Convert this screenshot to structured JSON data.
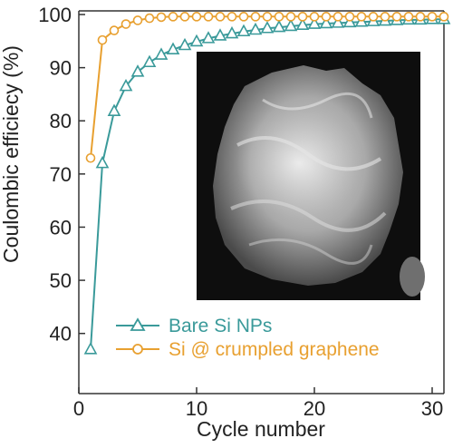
{
  "chart_data": {
    "type": "line",
    "xlabel": "Cycle number",
    "ylabel": "Coulombic efficiecy (%)",
    "xlim": [
      0,
      31
    ],
    "ylim": [
      35,
      100
    ],
    "xticks": [
      0,
      10,
      20,
      30
    ],
    "yticks": [
      40,
      50,
      60,
      70,
      80,
      90,
      100
    ],
    "grid": false,
    "legend_position": "bottom-right",
    "series": [
      {
        "name": "Bare Si NPs",
        "color": "#3a9a9a",
        "marker": "triangle",
        "x": [
          1,
          2,
          3,
          4,
          5,
          6,
          7,
          8,
          9,
          10,
          11,
          12,
          13,
          14,
          15,
          16,
          17,
          18,
          19,
          20,
          21,
          22,
          23,
          24,
          25,
          26,
          27,
          28,
          29,
          30,
          31
        ],
        "values": [
          37.0,
          72.0,
          81.8,
          86.5,
          89.2,
          91.0,
          92.4,
          93.4,
          94.2,
          94.9,
          95.5,
          96.0,
          96.4,
          96.8,
          97.1,
          97.4,
          97.6,
          97.8,
          98.0,
          98.2,
          98.3,
          98.4,
          98.5,
          98.6,
          98.7,
          98.8,
          98.9,
          99.0,
          99.0,
          99.1,
          99.1
        ]
      },
      {
        "name": "Si @ crumpled graphene",
        "color": "#e8a030",
        "marker": "circle",
        "x": [
          1,
          2,
          3,
          4,
          5,
          6,
          7,
          8,
          9,
          10,
          11,
          12,
          13,
          14,
          15,
          16,
          17,
          18,
          19,
          20,
          21,
          22,
          23,
          24,
          25,
          26,
          27,
          28,
          29,
          30,
          31
        ],
        "values": [
          73.0,
          95.2,
          97.0,
          98.2,
          98.9,
          99.3,
          99.5,
          99.6,
          99.6,
          99.6,
          99.6,
          99.6,
          99.6,
          99.6,
          99.6,
          99.6,
          99.6,
          99.6,
          99.6,
          99.6,
          99.6,
          99.6,
          99.6,
          99.6,
          99.6,
          99.6,
          99.6,
          99.6,
          99.6,
          99.6,
          99.6
        ]
      }
    ],
    "inset_image": "grayscale-micrograph"
  }
}
